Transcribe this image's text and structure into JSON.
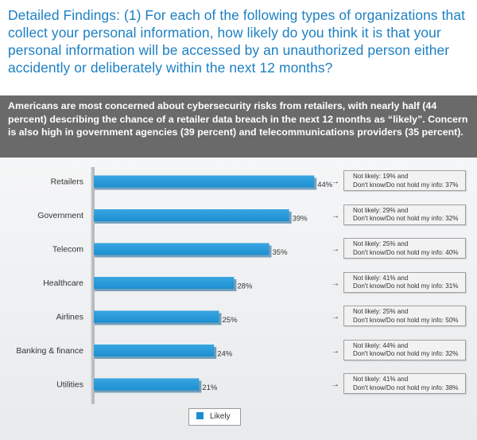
{
  "title": "Detailed Findings: (1) For each of the following types of organizations that collect your personal information, how likely do you think it is that your personal information will be accessed by an unauthorized person either accidently or deliberately within the next 12 months?",
  "summary": "Americans are most concerned about cybersecurity risks from retailers, with nearly half (44 percent) describing the chance of a retailer data breach in the next 12 months as “likely”. Concern is also high in government agencies (39 percent) and telecommunications providers (35 percent).",
  "legend": {
    "label": "Likely"
  },
  "colors": {
    "bar": "#1c8fd1",
    "title": "#1c7fc3",
    "summary_bg": "#6a6a6a"
  },
  "chart_data": {
    "type": "bar",
    "orientation": "horizontal",
    "categories": [
      "Retailers",
      "Government",
      "Telecom",
      "Healthcare",
      "Airlines",
      "Banking & finance",
      "Utilities"
    ],
    "series": [
      {
        "name": "Likely",
        "values": [
          44,
          39,
          35,
          28,
          25,
          24,
          21
        ]
      }
    ],
    "value_labels": [
      "44%",
      "39%",
      "35%",
      "28%",
      "25%",
      "24%",
      "21%"
    ],
    "annotations": [
      {
        "line1": "Not likely: 19% and",
        "line2": "Don't know/Do not hold my info: 37%"
      },
      {
        "line1": "Not likely: 29% and",
        "line2": "Don't know/Do not hold my info: 32%"
      },
      {
        "line1": "Not likely: 25% and",
        "line2": "Don't know/Do not hold my info: 40%"
      },
      {
        "line1": "Not likely: 41% and",
        "line2": "Don't know/Do not hold my info: 31%"
      },
      {
        "line1": "Not likely: 25% and",
        "line2": "Don't know/Do not hold my info: 50%"
      },
      {
        "line1": "Not likely: 44% and",
        "line2": "Don't know/Do not hold my info: 32%"
      },
      {
        "line1": "Not likely: 41% and",
        "line2": "Don't know/Do not hold my info: 38%"
      }
    ],
    "xlim": [
      0,
      50
    ],
    "grid": false,
    "legend_position": "bottom"
  }
}
